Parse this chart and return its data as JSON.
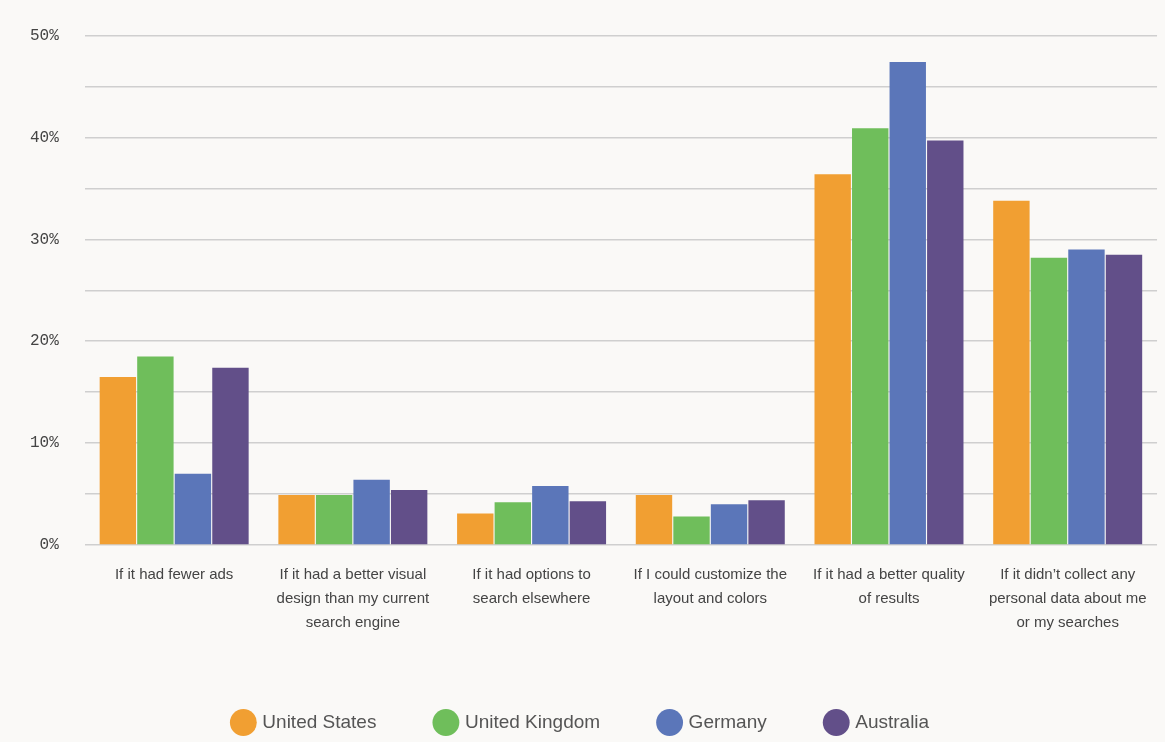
{
  "chart_data": {
    "type": "bar",
    "categories": [
      "If it had fewer ads",
      "If it had a better visual design than my current search engine",
      "If it had options to search elsewhere",
      "If I could customize the layout and colors",
      "If it had a better quality of results",
      "If it didn’t collect any personal data about me or my searches"
    ],
    "series": [
      {
        "name": "United States",
        "color": "#f19f32",
        "values": [
          16.5,
          4.9,
          3.1,
          4.9,
          36.4,
          33.8
        ]
      },
      {
        "name": "United Kingdom",
        "color": "#6fbe5b",
        "values": [
          18.5,
          4.9,
          4.2,
          2.8,
          40.9,
          28.2
        ]
      },
      {
        "name": "Germany",
        "color": "#5b76b9",
        "values": [
          7.0,
          6.4,
          5.8,
          4.0,
          47.4,
          29.0
        ]
      },
      {
        "name": "Australia",
        "color": "#624f89",
        "values": [
          17.4,
          5.4,
          4.3,
          4.4,
          39.7,
          28.5
        ]
      }
    ],
    "ylim": [
      0,
      50
    ],
    "yticks": [
      {
        "value": 0,
        "label": "0%"
      },
      {
        "value": 5,
        "label": null
      },
      {
        "value": 10,
        "label": "10%"
      },
      {
        "value": 15,
        "label": null
      },
      {
        "value": 20,
        "label": "20%"
      },
      {
        "value": 25,
        "label": null
      },
      {
        "value": 30,
        "label": "30%"
      },
      {
        "value": 35,
        "label": null
      },
      {
        "value": 40,
        "label": "40%"
      },
      {
        "value": 45,
        "label": null
      },
      {
        "value": 50,
        "label": "50%"
      }
    ],
    "grid": "y",
    "legend": "bottom"
  }
}
